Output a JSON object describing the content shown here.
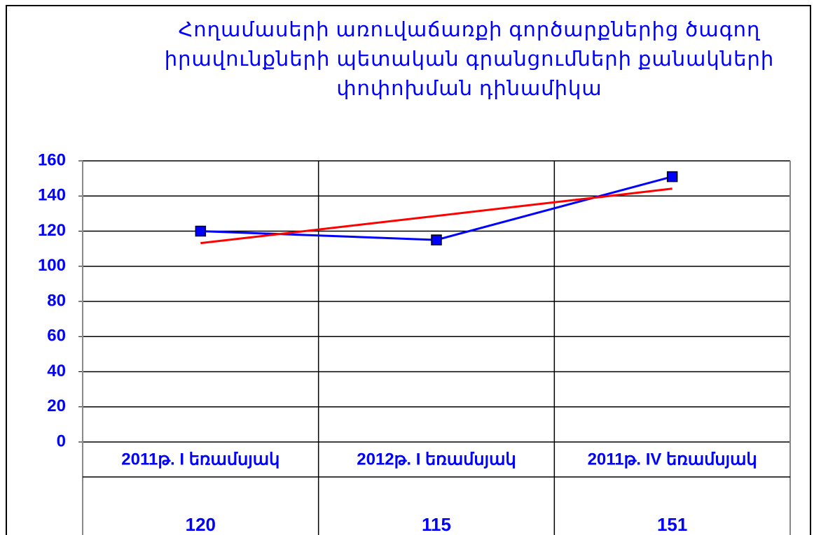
{
  "chart_data": {
    "type": "line",
    "title": "Հողամասերի առուվաճառքի գործարքներից ծագող իրավունքների պետական գրանցումների քանակների փոփոխման դինամիկա",
    "categories": [
      "2011թ. I եռամսյակ",
      "2012թ. I եռամսյակ",
      "2011թ. IV եռամսյակ"
    ],
    "series": [
      {
        "color": "#0000ff",
        "values": [
          120,
          115,
          151
        ]
      }
    ],
    "trendline": {
      "type": "linear",
      "color": "#ff0000"
    },
    "ylim": [
      0,
      160
    ],
    "yticks": [
      0,
      20,
      40,
      60,
      80,
      100,
      120,
      140,
      160
    ],
    "grid": true,
    "data_table": true
  }
}
